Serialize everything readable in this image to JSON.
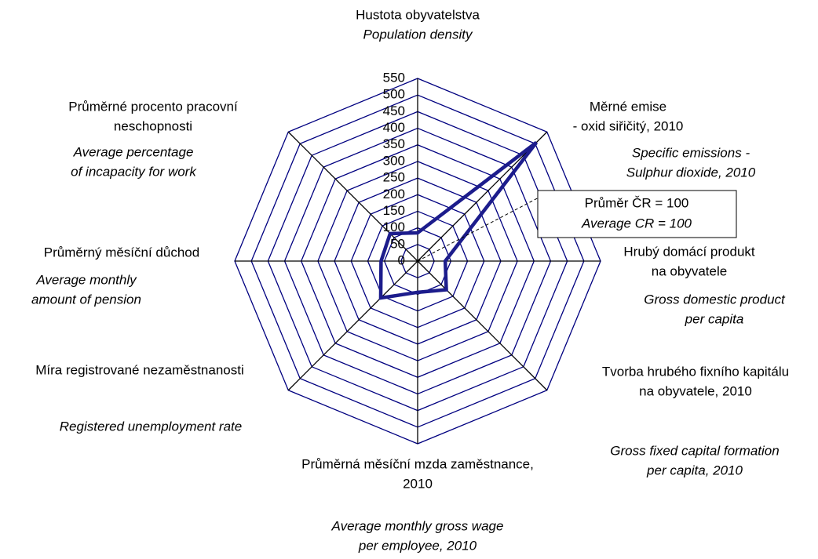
{
  "chart_data": {
    "type": "radar",
    "categories": [
      {
        "cz": [
          "Hustota obyvatelstva"
        ],
        "en": [
          "Population density"
        ]
      },
      {
        "cz": [
          "Měrné emise",
          "- oxid siřičitý, 2010"
        ],
        "en": [
          "Specific emissions -",
          "Sulphur dioxide, 2010"
        ]
      },
      {
        "cz": [
          "Hrubý domácí produkt",
          "na obyvatele"
        ],
        "en": [
          "Gross domestic product",
          "per capita"
        ]
      },
      {
        "cz": [
          "Tvorba hrubého fixního kapitálu",
          "na obyvatele, 2010"
        ],
        "en": [
          "Gross fixed capital formation",
          "per capita, 2010"
        ]
      },
      {
        "cz": [
          "Průměrná měsíční mzda zaměstnance,",
          "2010"
        ],
        "en": [
          "Average monthly gross wage",
          "per employee, 2010"
        ]
      },
      {
        "cz": [
          "Míra registrované nezaměstnanosti"
        ],
        "en": [
          "Registered unemployment rate"
        ]
      },
      {
        "cz": [
          "Průměrný měsíční důchod"
        ],
        "en": [
          "Average monthly",
          "amount of pension"
        ]
      },
      {
        "cz": [
          "Průměrné procento pracovní",
          "neschopnosti"
        ],
        "en": [
          "Average percentage",
          "of incapacity for work"
        ]
      }
    ],
    "series": [
      {
        "color": "#1c1c8c",
        "values": [
          85,
          505,
          83,
          122,
          94,
          157,
          110,
          117
        ]
      }
    ],
    "ylim": [
      0,
      550
    ],
    "yticks": [
      0,
      50,
      100,
      150,
      200,
      250,
      300,
      350,
      400,
      450,
      500,
      550
    ],
    "grid_color": "#000080",
    "annotation": [
      "Průměr  ČR = 100",
      "Average CR = 100"
    ]
  }
}
